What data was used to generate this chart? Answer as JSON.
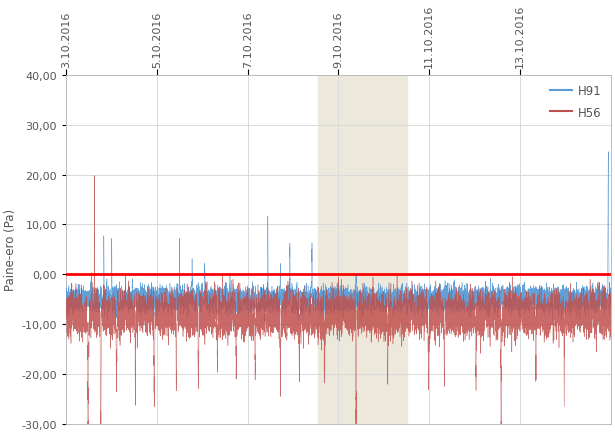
{
  "ylabel": "Paine-ero (Pa)",
  "ylim": [
    -30,
    40
  ],
  "yticks": [
    -30,
    -20,
    -10,
    0,
    10,
    20,
    30,
    40
  ],
  "ytick_labels": [
    "-30,00",
    "-20,00",
    "-10,00",
    "0,00",
    "10,00",
    "20,00",
    "30,00",
    "40,00"
  ],
  "xtick_dates": [
    "3.10.2016",
    "5.10.2016",
    "7.10.2016",
    "9.10.2016",
    "11.10.2016",
    "13.10.2016"
  ],
  "xtick_positions": [
    0,
    2880,
    5760,
    8640,
    11520,
    14400
  ],
  "total_points": 17280,
  "h91_color": "#5B9BD5",
  "h56_color": "#C0504D",
  "zero_line_color": "#FF0000",
  "highlight_start": 8000,
  "highlight_end": 10800,
  "highlight_color": "#EDE8DC",
  "legend_labels": [
    "H91",
    "H56"
  ],
  "background_color": "#FFFFFF",
  "grid_color": "#D9D9D9",
  "seed": 12345
}
